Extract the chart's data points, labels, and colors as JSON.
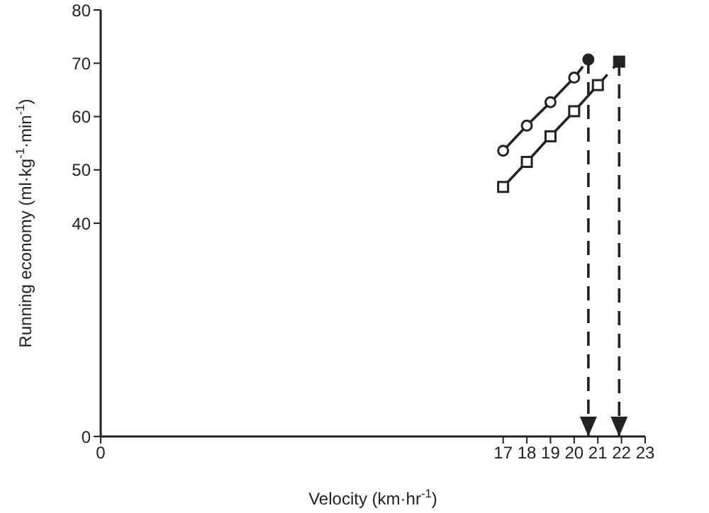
{
  "chart_data": {
    "type": "line",
    "xlabel": "Velocity (km·hr$^{-1}$)",
    "ylabel": "Running economy (ml·kg$^{-1}$·min$^{-1}$)",
    "xlim": [
      0,
      23
    ],
    "xticks": [
      0,
      17,
      18,
      19,
      20,
      21,
      22,
      23
    ],
    "ylim": [
      0,
      80
    ],
    "yticks": [
      0,
      40,
      50,
      60,
      70,
      80
    ],
    "grid": false,
    "legend": false,
    "ref_lines": [
      {
        "axis": "x",
        "value": 20.6,
        "line_style": "dashed",
        "color": "#222222"
      },
      {
        "axis": "x",
        "value": 21.9,
        "line_style": "dashed",
        "color": "#222222"
      }
    ],
    "series": [
      {
        "type": "line",
        "color": "#222222",
        "marker": "circle",
        "line_style": "solid",
        "x": [
          17,
          18,
          19,
          20
        ],
        "values": [
          53.6,
          58.3,
          62.7,
          67.3
        ]
      },
      {
        "color": "#222222",
        "marker": "none",
        "line_style": "dashed",
        "x": [
          20,
          20.6
        ],
        "values": [
          67.3,
          70.7
        ]
      },
      {
        "type": "scatter",
        "color": "#222222",
        "marker": "circle",
        "x": [
          20.6
        ],
        "values": [
          70.7
        ]
      },
      {
        "type": "line",
        "color": "#222222",
        "marker": "square",
        "line_style": "solid",
        "x": [
          17,
          18,
          19,
          20,
          21
        ],
        "values": [
          46.8,
          51.5,
          56.3,
          61.0,
          65.9
        ]
      },
      {
        "color": "#222222",
        "marker": "none",
        "line_style": "dashed",
        "x": [
          21,
          21.9
        ],
        "values": [
          65.9,
          70.3
        ]
      },
      {
        "type": "scatter",
        "color": "#222222",
        "marker": "square",
        "x": [
          21.9
        ],
        "values": [
          70.3
        ]
      }
    ]
  }
}
